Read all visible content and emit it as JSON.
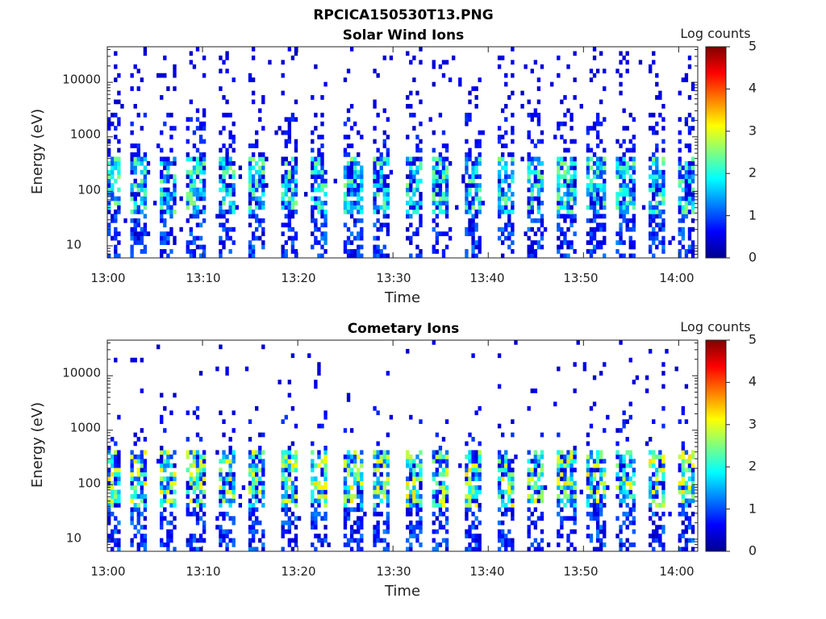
{
  "figure": {
    "title": "RPCICA150530T13.PNG"
  },
  "colormap": "jet",
  "chart_data": [
    {
      "type": "heatmap",
      "title": "Solar Wind Ions",
      "xlabel": "Time",
      "ylabel": "Energy (eV)",
      "x_range": [
        "13:00",
        "14:02"
      ],
      "x_ticks": [
        "13:00",
        "13:10",
        "13:20",
        "13:30",
        "13:40",
        "13:50",
        "14:00"
      ],
      "y_scale": "log",
      "y_range": [
        6,
        45000
      ],
      "y_ticks": [
        "10",
        "100",
        "1000",
        "10000"
      ],
      "colorbar": {
        "label": "Log counts",
        "range": [
          0,
          5
        ],
        "ticks": [
          "0",
          "1",
          "2",
          "3",
          "4",
          "5"
        ]
      },
      "bursts_minutes": [
        0.5,
        3.3,
        6.3,
        9.3,
        12.6,
        15.6,
        19.0,
        22.2,
        25.8,
        28.8,
        32.1,
        35.0,
        38.5,
        41.8,
        45.0,
        48.2,
        51.3,
        54.4,
        57.7,
        60.7
      ],
      "hot_band_eV": [
        40,
        400
      ],
      "peak_log_counts": 2.3
    },
    {
      "type": "heatmap",
      "title": "Cometary Ions",
      "xlabel": "Time",
      "ylabel": "Energy (eV)",
      "x_range": [
        "13:00",
        "14:02"
      ],
      "x_ticks": [
        "13:00",
        "13:10",
        "13:20",
        "13:30",
        "13:40",
        "13:50",
        "14:00"
      ],
      "y_scale": "log",
      "y_range": [
        6,
        45000
      ],
      "y_ticks": [
        "10",
        "100",
        "1000",
        "10000"
      ],
      "colorbar": {
        "label": "Log counts",
        "range": [
          0,
          5
        ],
        "ticks": [
          "0",
          "1",
          "2",
          "3",
          "4",
          "5"
        ]
      },
      "bursts_minutes": [
        0.5,
        3.3,
        6.3,
        9.3,
        12.6,
        15.6,
        19.0,
        22.2,
        25.8,
        28.8,
        32.1,
        35.0,
        38.5,
        41.8,
        45.0,
        48.2,
        51.3,
        54.4,
        57.7,
        60.7
      ],
      "hot_band_eV": [
        40,
        400
      ],
      "peak_log_counts": 3.0
    }
  ]
}
